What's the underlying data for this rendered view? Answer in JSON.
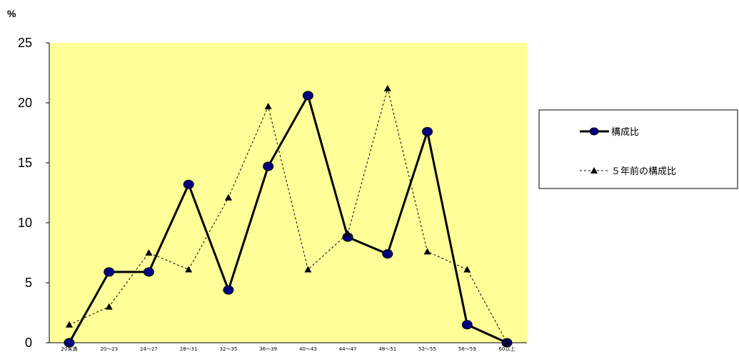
{
  "chart_data": {
    "type": "line",
    "unit_label": "%",
    "categories": [
      "20未満",
      "20～23",
      "24～27",
      "28～31",
      "32～35",
      "36～39",
      "40～43",
      "44～47",
      "48～51",
      "52～55",
      "56～59",
      "60以上"
    ],
    "ylim": [
      0,
      25
    ],
    "yticks": [
      0,
      5,
      10,
      15,
      20,
      25
    ],
    "grid": false,
    "legend_position": "right",
    "plot_background": "#ffff99",
    "series": [
      {
        "name": "構成比",
        "values": [
          0,
          5.9,
          5.9,
          13.2,
          4.4,
          14.7,
          20.6,
          8.8,
          7.4,
          17.6,
          1.5,
          0
        ],
        "line_color": "#000000",
        "line_style": "solid",
        "marker": "circle",
        "marker_color": "#000080"
      },
      {
        "name": "５年前の構成比",
        "values": [
          1.5,
          3.0,
          7.5,
          6.1,
          12.1,
          19.7,
          6.1,
          9.1,
          21.2,
          7.6,
          6.1,
          0
        ],
        "line_color": "#000000",
        "line_style": "dashed",
        "marker": "triangle",
        "marker_color": "#000000"
      }
    ]
  }
}
